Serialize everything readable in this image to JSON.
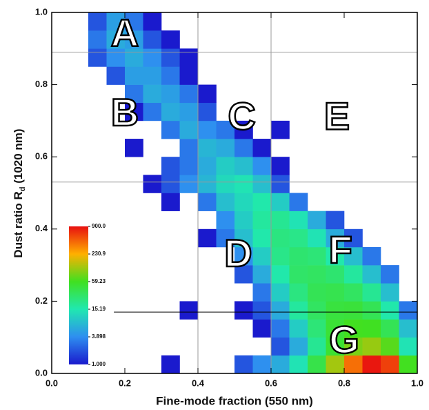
{
  "chart_data": {
    "type": "heatmap",
    "xlabel": "Fine-mode fraction (550 nm)",
    "ylabel_parts": [
      "Dust ratio R",
      "d",
      " (1020 nm)"
    ],
    "xlim": [
      0,
      1
    ],
    "ylim": [
      0,
      1
    ],
    "xticks": [
      {
        "value": 0,
        "label": "0.0"
      },
      {
        "value": 0.2,
        "label": "0.2"
      },
      {
        "value": 0.4,
        "label": "0.4"
      },
      {
        "value": 0.6,
        "label": "0.6"
      },
      {
        "value": 0.8,
        "label": "0.8"
      },
      {
        "value": 1,
        "label": "1.0"
      }
    ],
    "yticks": [
      {
        "value": 0,
        "label": "0.0"
      },
      {
        "value": 0.2,
        "label": "0.2"
      },
      {
        "value": 0.4,
        "label": "0.4"
      },
      {
        "value": 0.6,
        "label": "0.6"
      },
      {
        "value": 0.8,
        "label": "0.8"
      },
      {
        "value": 1,
        "label": "1.0"
      }
    ],
    "xbins": [
      0,
      0.05,
      0.1,
      0.15,
      0.2,
      0.25,
      0.3,
      0.35,
      0.4,
      0.45,
      0.5,
      0.55,
      0.6,
      0.65,
      0.7,
      0.75,
      0.8,
      0.85,
      0.9,
      0.95,
      1
    ],
    "ybins": [
      0,
      0.05,
      0.1,
      0.15,
      0.2,
      0.25,
      0.3,
      0.35,
      0.4,
      0.45,
      0.5,
      0.55,
      0.6,
      0.65,
      0.7,
      0.75,
      0.8,
      0.85,
      0.9,
      0.95,
      1
    ],
    "values": [
      [
        null,
        null,
        null,
        null,
        null,
        null,
        1,
        null,
        null,
        null,
        2,
        4,
        6,
        14,
        40,
        120,
        400,
        850,
        600,
        60
      ],
      [
        null,
        null,
        null,
        null,
        null,
        null,
        null,
        null,
        null,
        null,
        null,
        null,
        2,
        6,
        20,
        50,
        90,
        110,
        70,
        14
      ],
      [
        null,
        null,
        null,
        null,
        null,
        null,
        null,
        null,
        null,
        null,
        null,
        1,
        3,
        10,
        26,
        48,
        60,
        58,
        36,
        8
      ],
      [
        null,
        null,
        null,
        null,
        null,
        null,
        null,
        1,
        null,
        null,
        1,
        2,
        6,
        18,
        32,
        44,
        46,
        36,
        16,
        3
      ],
      [
        null,
        null,
        null,
        null,
        null,
        null,
        null,
        null,
        null,
        null,
        null,
        3,
        10,
        24,
        36,
        38,
        32,
        20,
        8,
        null
      ],
      [
        null,
        null,
        null,
        null,
        null,
        null,
        null,
        null,
        null,
        null,
        2,
        6,
        16,
        30,
        32,
        28,
        18,
        8,
        3,
        null
      ],
      [
        null,
        null,
        null,
        null,
        null,
        null,
        null,
        null,
        null,
        null,
        4,
        10,
        22,
        28,
        26,
        16,
        8,
        3,
        null,
        null
      ],
      [
        null,
        null,
        null,
        null,
        null,
        null,
        null,
        null,
        1,
        3,
        8,
        16,
        24,
        22,
        14,
        6,
        2,
        null,
        null,
        null
      ],
      [
        null,
        null,
        null,
        null,
        null,
        null,
        null,
        null,
        null,
        4,
        10,
        18,
        20,
        14,
        6,
        2,
        null,
        null,
        null,
        null
      ],
      [
        null,
        null,
        null,
        null,
        null,
        null,
        1,
        null,
        3,
        8,
        12,
        16,
        10,
        3,
        null,
        null,
        null,
        null,
        null,
        null
      ],
      [
        null,
        null,
        null,
        null,
        null,
        1,
        2,
        4,
        7,
        12,
        14,
        8,
        2,
        null,
        null,
        null,
        null,
        null,
        null,
        null
      ],
      [
        null,
        null,
        null,
        null,
        null,
        null,
        2,
        3,
        6,
        10,
        8,
        4,
        1,
        null,
        null,
        null,
        null,
        null,
        null,
        null
      ],
      [
        null,
        null,
        null,
        null,
        1,
        null,
        null,
        3,
        7,
        6,
        3,
        1,
        null,
        null,
        null,
        null,
        null,
        null,
        null,
        null
      ],
      [
        null,
        null,
        null,
        null,
        null,
        null,
        3,
        6,
        4,
        3,
        1,
        null,
        1,
        null,
        null,
        null,
        null,
        null,
        null,
        null
      ],
      [
        null,
        null,
        null,
        null,
        1,
        3,
        6,
        5,
        2,
        null,
        null,
        null,
        null,
        null,
        null,
        null,
        null,
        null,
        null,
        null
      ],
      [
        null,
        null,
        null,
        null,
        3,
        6,
        5,
        3,
        1,
        null,
        null,
        null,
        null,
        null,
        null,
        null,
        null,
        null,
        null,
        null
      ],
      [
        null,
        null,
        null,
        2,
        5,
        5,
        3,
        1,
        null,
        null,
        null,
        null,
        null,
        null,
        null,
        null,
        null,
        null,
        null,
        null
      ],
      [
        null,
        null,
        2,
        4,
        6,
        4,
        2,
        1,
        null,
        null,
        null,
        null,
        null,
        null,
        null,
        null,
        null,
        null,
        null,
        null
      ],
      [
        null,
        null,
        3,
        6,
        5,
        2,
        1,
        null,
        null,
        null,
        null,
        null,
        null,
        null,
        null,
        null,
        null,
        null,
        null,
        null
      ],
      [
        null,
        null,
        2,
        5,
        3,
        1,
        null,
        null,
        null,
        null,
        null,
        null,
        null,
        null,
        null,
        null,
        null,
        null,
        null,
        null
      ]
    ],
    "colorscale": [
      {
        "value": 1,
        "color": "#1a1acd"
      },
      {
        "value": 3.898,
        "color": "#2e8ef0"
      },
      {
        "value": 15.19,
        "color": "#20e8b0"
      },
      {
        "value": 59.23,
        "color": "#40e020"
      },
      {
        "value": 230.9,
        "color": "#ffb000"
      },
      {
        "value": 900,
        "color": "#e81010"
      }
    ],
    "color_log": true,
    "colorbar_ticks": [
      {
        "value": 1,
        "label": "1.000"
      },
      {
        "value": 3.898,
        "label": "3.898"
      },
      {
        "value": 15.19,
        "label": "15.19"
      },
      {
        "value": 59.23,
        "label": "59.23"
      },
      {
        "value": 230.9,
        "label": "230.9"
      },
      {
        "value": 900,
        "label": "900.0"
      }
    ],
    "reference_lines": [
      {
        "axis": "x",
        "value": 0.4,
        "color": "#999999"
      },
      {
        "axis": "x",
        "value": 0.6,
        "color": "#999999"
      },
      {
        "axis": "y",
        "value": 0.89,
        "color": "#999999"
      },
      {
        "axis": "y",
        "value": 0.53,
        "color": "#999999"
      },
      {
        "axis": "y",
        "value": 0.17,
        "from": 0.17,
        "color": "#000000"
      }
    ],
    "annotations": [
      {
        "text": "A",
        "x": 0.2,
        "y": 0.94
      },
      {
        "text": "B",
        "x": 0.2,
        "y": 0.72
      },
      {
        "text": "C",
        "x": 0.52,
        "y": 0.71
      },
      {
        "text": "D",
        "x": 0.51,
        "y": 0.33
      },
      {
        "text": "E",
        "x": 0.78,
        "y": 0.71
      },
      {
        "text": "F",
        "x": 0.79,
        "y": 0.34
      },
      {
        "text": "G",
        "x": 0.8,
        "y": 0.09
      }
    ]
  }
}
